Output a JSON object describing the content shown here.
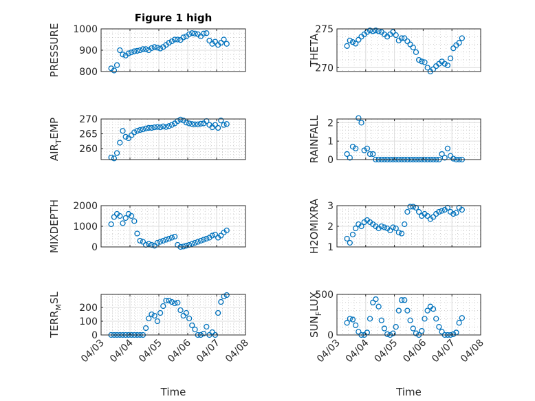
{
  "chart_data": {
    "type": "scatter",
    "title": "Figure 1 high",
    "xlabel": "Time",
    "marker": "circle",
    "series_color": "#0072BD",
    "grid": "major and minor",
    "xlim": [
      0,
      5
    ],
    "x_units": "days since 04/03 00:00",
    "x_tick_values": [
      0,
      1,
      2,
      3,
      4,
      5
    ],
    "x_tick_labels": [
      "04/03",
      "04/04",
      "04/05",
      "04/06",
      "04/07",
      "04/08"
    ],
    "x": [
      0.35,
      0.45,
      0.55,
      0.65,
      0.75,
      0.85,
      0.95,
      1.05,
      1.15,
      1.25,
      1.35,
      1.45,
      1.55,
      1.65,
      1.75,
      1.85,
      1.95,
      2.05,
      2.15,
      2.25,
      2.35,
      2.45,
      2.55,
      2.65,
      2.75,
      2.85,
      2.95,
      3.05,
      3.15,
      3.25,
      3.35,
      3.45,
      3.55,
      3.65,
      3.75,
      3.85,
      3.95,
      4.05,
      4.15,
      4.25,
      4.35
    ],
    "subplots": [
      {
        "ylabel": "PRESSURE",
        "ylim": [
          800,
          1000
        ],
        "yticks": [
          800,
          900,
          1000
        ],
        "values": [
          815,
          805,
          830,
          900,
          880,
          875,
          885,
          890,
          895,
          897,
          900,
          905,
          905,
          900,
          910,
          915,
          912,
          908,
          915,
          925,
          935,
          942,
          950,
          950,
          948,
          960,
          965,
          975,
          980,
          978,
          975,
          965,
          978,
          980,
          945,
          930,
          940,
          925,
          935,
          950,
          930
        ]
      },
      {
        "ylabel": "THETA",
        "ylim": [
          269.5,
          275
        ],
        "yticks": [
          270,
          275
        ],
        "values": [
          272.8,
          273.5,
          273.3,
          273.1,
          273.6,
          274.0,
          274.3,
          274.6,
          274.8,
          274.7,
          274.8,
          274.7,
          274.6,
          274.3,
          274.0,
          274.3,
          274.6,
          274.2,
          273.5,
          273.8,
          273.8,
          273.4,
          273.0,
          272.6,
          272.0,
          271.0,
          270.8,
          270.7,
          270.0,
          269.5,
          269.8,
          270.2,
          270.5,
          270.8,
          270.5,
          270.3,
          271.2,
          272.5,
          272.9,
          273.2,
          273.8
        ]
      },
      {
        "ylabel": "AIR_TEMP",
        "ylim": [
          256.3,
          270
        ],
        "yticks": [
          260,
          265,
          270
        ],
        "values": [
          257.0,
          256.7,
          258.5,
          262,
          266,
          264,
          263.5,
          264.5,
          265.5,
          266,
          266.3,
          266.5,
          266.8,
          267,
          267,
          267.2,
          267.3,
          267.2,
          267.5,
          267.3,
          267.6,
          268,
          268.5,
          269.3,
          269.8,
          269.5,
          268.8,
          268.5,
          268.3,
          268.2,
          268.2,
          268.4,
          268.5,
          269.3,
          268,
          267.2,
          268,
          267,
          269.5,
          268,
          268.3
        ]
      },
      {
        "ylabel": "RAINFALL",
        "ylim": [
          0,
          2.2
        ],
        "yticks": [
          0,
          1,
          2
        ],
        "values": [
          0.3,
          0.1,
          0.7,
          0.6,
          2.25,
          2.0,
          0.5,
          0.6,
          0.3,
          0.3,
          0,
          0,
          0,
          0,
          0,
          0,
          0,
          0,
          0,
          0,
          0,
          0,
          0,
          0,
          0,
          0,
          0,
          0,
          0,
          0,
          0,
          0,
          0,
          0.3,
          0.1,
          0.6,
          0.2,
          0.05,
          0,
          0,
          0
        ]
      },
      {
        "ylabel": "MIXDEPTH",
        "ylim": [
          0,
          2000
        ],
        "yticks": [
          0,
          1000,
          2000
        ],
        "values": [
          1100,
          1450,
          1600,
          1500,
          1150,
          1400,
          1600,
          1500,
          1250,
          650,
          300,
          250,
          100,
          150,
          100,
          60,
          200,
          250,
          300,
          350,
          400,
          450,
          500,
          100,
          0,
          20,
          60,
          100,
          150,
          200,
          250,
          300,
          350,
          400,
          450,
          550,
          600,
          450,
          550,
          700,
          800
        ]
      },
      {
        "ylabel": "H2OMIXRA",
        "ylim": [
          1,
          3
        ],
        "yticks": [
          1,
          2,
          3
        ],
        "values": [
          1.4,
          1.2,
          1.6,
          1.9,
          2.1,
          2.0,
          2.2,
          2.3,
          2.2,
          2.1,
          2.0,
          1.9,
          2.0,
          1.95,
          1.9,
          1.8,
          1.95,
          1.9,
          1.7,
          1.65,
          2.1,
          2.7,
          2.95,
          2.95,
          2.9,
          2.7,
          2.5,
          2.6,
          2.5,
          2.35,
          2.45,
          2.6,
          2.7,
          2.75,
          2.8,
          2.9,
          2.7,
          2.6,
          2.65,
          2.9,
          2.8
        ]
      },
      {
        "ylabel": "TERR_MSL",
        "ylim": [
          0,
          295
        ],
        "yticks": [
          0,
          100,
          200
        ],
        "values": [
          0,
          0,
          0,
          0,
          0,
          0,
          0,
          0,
          0,
          0,
          0,
          0,
          50,
          120,
          150,
          140,
          100,
          160,
          210,
          250,
          250,
          240,
          230,
          235,
          180,
          140,
          160,
          120,
          70,
          40,
          0,
          0,
          10,
          60,
          0,
          20,
          0,
          160,
          240,
          280,
          290
        ]
      },
      {
        "ylabel": "SUN_FLUX",
        "ylim": [
          0,
          500
        ],
        "yticks": [
          0,
          500
        ],
        "values": [
          150,
          200,
          190,
          120,
          40,
          0,
          0,
          30,
          200,
          400,
          440,
          350,
          180,
          80,
          10,
          0,
          20,
          100,
          300,
          430,
          430,
          300,
          180,
          80,
          20,
          0,
          50,
          200,
          300,
          350,
          320,
          200,
          100,
          40,
          0,
          0,
          0,
          10,
          30,
          150,
          210
        ]
      }
    ]
  }
}
